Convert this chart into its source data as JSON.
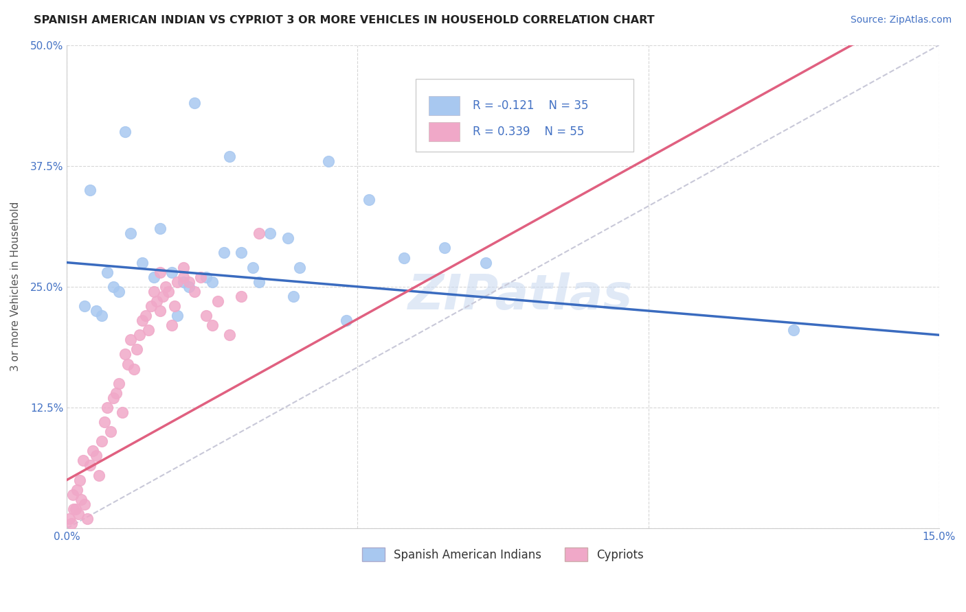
{
  "title": "SPANISH AMERICAN INDIAN VS CYPRIOT 3 OR MORE VEHICLES IN HOUSEHOLD CORRELATION CHART",
  "source": "Source: ZipAtlas.com",
  "ylabel": "3 or more Vehicles in Household",
  "xlim": [
    0.0,
    15.0
  ],
  "ylim": [
    0.0,
    50.0
  ],
  "xtick_labels": [
    "0.0%",
    "",
    "",
    "15.0%"
  ],
  "ytick_labels": [
    "",
    "12.5%",
    "25.0%",
    "37.5%",
    "50.0%"
  ],
  "blue_R": -0.121,
  "blue_N": 35,
  "pink_R": 0.339,
  "pink_N": 55,
  "blue_color": "#a8c8f0",
  "pink_color": "#f0a8c8",
  "blue_line_color": "#3a6bbf",
  "pink_line_color": "#e06080",
  "legend_label_blue": "Spanish American Indians",
  "legend_label_pink": "Cypriots",
  "blue_scatter_x": [
    1.0,
    2.2,
    0.4,
    1.6,
    0.7,
    2.8,
    4.5,
    3.8,
    5.2,
    6.5,
    7.2,
    0.5,
    1.3,
    2.0,
    3.0,
    4.0,
    0.9,
    1.8,
    2.5,
    3.5,
    5.8,
    0.3,
    1.1,
    2.1,
    3.2,
    1.5,
    0.8,
    2.7,
    3.9,
    0.6,
    1.9,
    4.8,
    12.5,
    3.3,
    2.4
  ],
  "blue_scatter_y": [
    41.0,
    44.0,
    35.0,
    31.0,
    26.5,
    38.5,
    38.0,
    30.0,
    34.0,
    29.0,
    27.5,
    22.5,
    27.5,
    25.5,
    28.5,
    27.0,
    24.5,
    26.5,
    25.5,
    30.5,
    28.0,
    23.0,
    30.5,
    25.0,
    27.0,
    26.0,
    25.0,
    28.5,
    24.0,
    22.0,
    22.0,
    21.5,
    20.5,
    25.5,
    26.0
  ],
  "pink_scatter_x": [
    0.1,
    0.15,
    0.2,
    0.25,
    0.3,
    0.35,
    0.4,
    0.45,
    0.5,
    0.55,
    0.6,
    0.65,
    0.7,
    0.75,
    0.8,
    0.85,
    0.9,
    0.95,
    1.0,
    1.05,
    1.1,
    1.15,
    1.2,
    1.25,
    1.3,
    1.35,
    1.4,
    1.45,
    1.5,
    1.55,
    1.6,
    1.65,
    1.7,
    1.75,
    1.8,
    1.85,
    1.9,
    2.0,
    2.1,
    2.2,
    2.3,
    2.4,
    2.5,
    2.6,
    2.8,
    3.0,
    0.05,
    0.08,
    0.12,
    0.18,
    0.22,
    0.28,
    3.3,
    2.0,
    1.6
  ],
  "pink_scatter_y": [
    3.5,
    2.0,
    1.5,
    3.0,
    2.5,
    1.0,
    6.5,
    8.0,
    7.5,
    5.5,
    9.0,
    11.0,
    12.5,
    10.0,
    13.5,
    14.0,
    15.0,
    12.0,
    18.0,
    17.0,
    19.5,
    16.5,
    18.5,
    20.0,
    21.5,
    22.0,
    20.5,
    23.0,
    24.5,
    23.5,
    22.5,
    24.0,
    25.0,
    24.5,
    21.0,
    23.0,
    25.5,
    26.0,
    25.5,
    24.5,
    26.0,
    22.0,
    21.0,
    23.5,
    20.0,
    24.0,
    1.0,
    0.5,
    2.0,
    4.0,
    5.0,
    7.0,
    30.5,
    27.0,
    26.5
  ]
}
